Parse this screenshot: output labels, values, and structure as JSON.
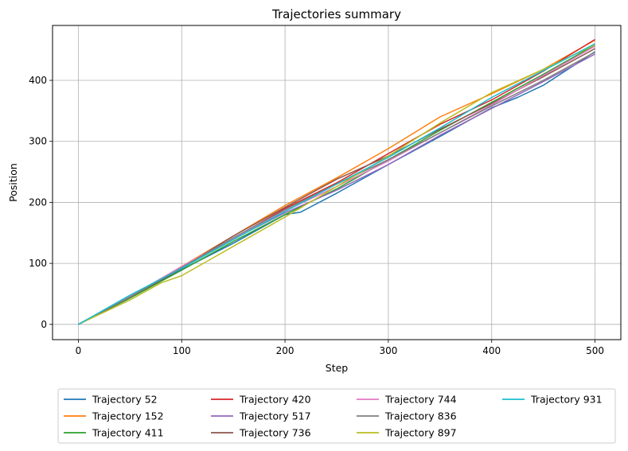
{
  "chart_data": {
    "type": "line",
    "title": "Trajectories summary",
    "xlabel": "Step",
    "ylabel": "Position",
    "xlim": [
      -25,
      525
    ],
    "ylim": [
      -25,
      490
    ],
    "xticks": [
      0,
      100,
      200,
      300,
      400,
      500
    ],
    "yticks": [
      0,
      100,
      200,
      300,
      400
    ],
    "grid": true,
    "legend_position": "bottom-center, below plot, 4 columns",
    "series": [
      {
        "name": "Trajectory 52",
        "color": "#1f77b4",
        "x": [
          0,
          50,
          100,
          150,
          200,
          215,
          250,
          300,
          350,
          400,
          425,
          450,
          500
        ],
        "y": [
          0,
          44,
          90,
          133,
          180,
          184,
          215,
          262,
          308,
          355,
          372,
          392,
          447
        ]
      },
      {
        "name": "Trajectory 152",
        "color": "#ff7f0e",
        "x": [
          0,
          50,
          100,
          150,
          200,
          250,
          300,
          350,
          400,
          450,
          500
        ],
        "y": [
          0,
          45,
          95,
          145,
          195,
          240,
          288,
          340,
          378,
          418,
          466
        ]
      },
      {
        "name": "Trajectory 411",
        "color": "#2ca02c",
        "x": [
          0,
          50,
          100,
          150,
          200,
          250,
          300,
          350,
          400,
          450,
          500
        ],
        "y": [
          0,
          43,
          89,
          136,
          180,
          222,
          270,
          318,
          364,
          410,
          458
        ]
      },
      {
        "name": "Trajectory 420",
        "color": "#d62728",
        "x": [
          0,
          50,
          100,
          150,
          200,
          250,
          300,
          350,
          400,
          450,
          500
        ],
        "y": [
          0,
          45,
          92,
          141,
          190,
          232,
          280,
          328,
          368,
          415,
          467
        ]
      },
      {
        "name": "Trajectory 517",
        "color": "#9467bd",
        "x": [
          0,
          50,
          100,
          150,
          200,
          250,
          300,
          350,
          400,
          450,
          500
        ],
        "y": [
          0,
          46,
          94,
          140,
          183,
          220,
          262,
          310,
          354,
          398,
          443
        ]
      },
      {
        "name": "Trajectory 736",
        "color": "#8c564b",
        "x": [
          0,
          50,
          100,
          150,
          200,
          250,
          300,
          350,
          400,
          450,
          500
        ],
        "y": [
          0,
          45,
          93,
          145,
          192,
          238,
          276,
          320,
          362,
          406,
          452
        ]
      },
      {
        "name": "Trajectory 744",
        "color": "#e377c2",
        "x": [
          0,
          50,
          100,
          150,
          200,
          250,
          300,
          350,
          400,
          450,
          500
        ],
        "y": [
          0,
          46,
          95,
          141,
          186,
          226,
          268,
          314,
          360,
          408,
          456
        ]
      },
      {
        "name": "Trajectory 836",
        "color": "#7f7f7f",
        "x": [
          0,
          50,
          100,
          150,
          200,
          250,
          300,
          350,
          400,
          450,
          500
        ],
        "y": [
          0,
          45,
          93,
          142,
          188,
          230,
          270,
          314,
          358,
          400,
          446
        ]
      },
      {
        "name": "Trajectory 897",
        "color": "#bcbd22",
        "x": [
          0,
          50,
          80,
          100,
          150,
          200,
          250,
          300,
          350,
          400,
          450,
          500
        ],
        "y": [
          0,
          40,
          68,
          80,
          128,
          176,
          226,
          276,
          330,
          380,
          418,
          458
        ]
      },
      {
        "name": "Trajectory 931",
        "color": "#17becf",
        "x": [
          0,
          50,
          100,
          150,
          200,
          250,
          300,
          350,
          400,
          450,
          500
        ],
        "y": [
          0,
          48,
          92,
          139,
          185,
          230,
          274,
          322,
          372,
          416,
          460
        ]
      }
    ]
  }
}
